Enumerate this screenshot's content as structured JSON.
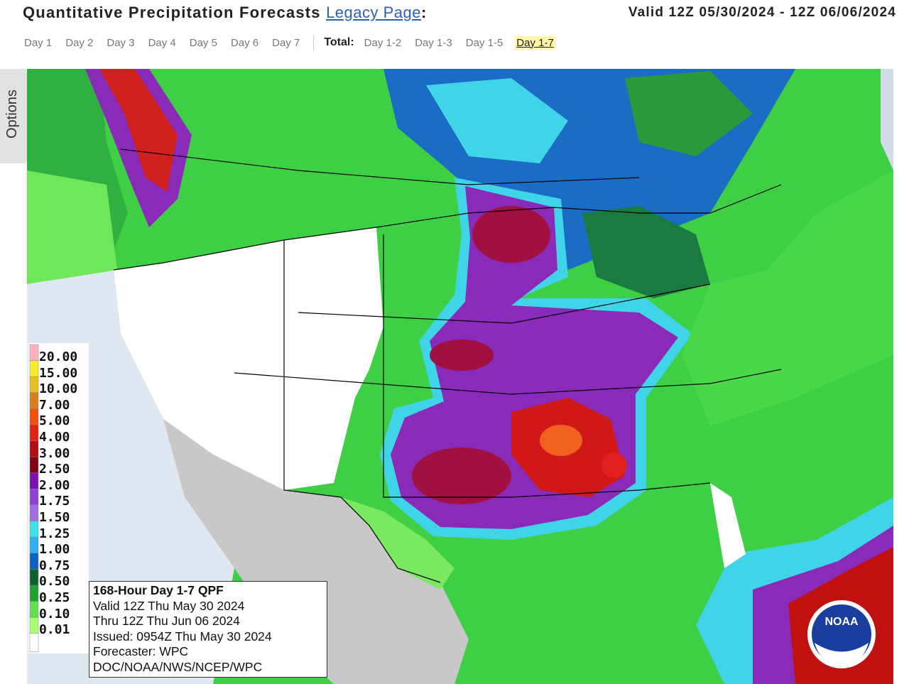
{
  "header": {
    "title": "Quantitative Precipitation Forecasts",
    "legacy_link": "Legacy Page",
    "colon": ":",
    "valid": "Valid 12Z 05/30/2024 - 12Z 06/06/2024"
  },
  "tabs": {
    "days": [
      "Day 1",
      "Day 2",
      "Day 3",
      "Day 4",
      "Day 5",
      "Day 6",
      "Day 7"
    ],
    "total_label": "Total:",
    "totals": [
      "Day 1-2",
      "Day 1-3",
      "Day 1-5",
      "Day 1-7"
    ],
    "selected": "Day 1-7"
  },
  "options": "Options",
  "legend": [
    {
      "label": "20.00",
      "color": "#ffb0c0"
    },
    {
      "label": "15.00",
      "color": "#f8ec30"
    },
    {
      "label": "10.00",
      "color": "#e8c020"
    },
    {
      "label": "7.00",
      "color": "#d88020"
    },
    {
      "label": "5.00",
      "color": "#f05010"
    },
    {
      "label": "4.00",
      "color": "#e02010"
    },
    {
      "label": "3.00",
      "color": "#b01010"
    },
    {
      "label": "2.50",
      "color": "#800018"
    },
    {
      "label": "2.00",
      "color": "#8010b0"
    },
    {
      "label": "1.75",
      "color": "#9040d0"
    },
    {
      "label": "1.50",
      "color": "#a070e0"
    },
    {
      "label": "1.25",
      "color": "#40e0e8"
    },
    {
      "label": "1.00",
      "color": "#30b0f0"
    },
    {
      "label": "0.75",
      "color": "#1060c0"
    },
    {
      "label": "0.50",
      "color": "#106030"
    },
    {
      "label": "0.25",
      "color": "#20a030"
    },
    {
      "label": "0.10",
      "color": "#60e050"
    },
    {
      "label": "0.01",
      "color": "#a8ff70"
    }
  ],
  "info_box": {
    "lines": [
      "168-Hour Day 1-7 QPF",
      "Valid 12Z Thu May 30 2024",
      "Thru 12Z Thu Jun 06 2024",
      "Issued: 0954Z Thu May 30 2024",
      "Forecaster: WPC",
      "DOC/NOAA/NWS/NCEP/WPC"
    ]
  },
  "logo": "NOAA"
}
